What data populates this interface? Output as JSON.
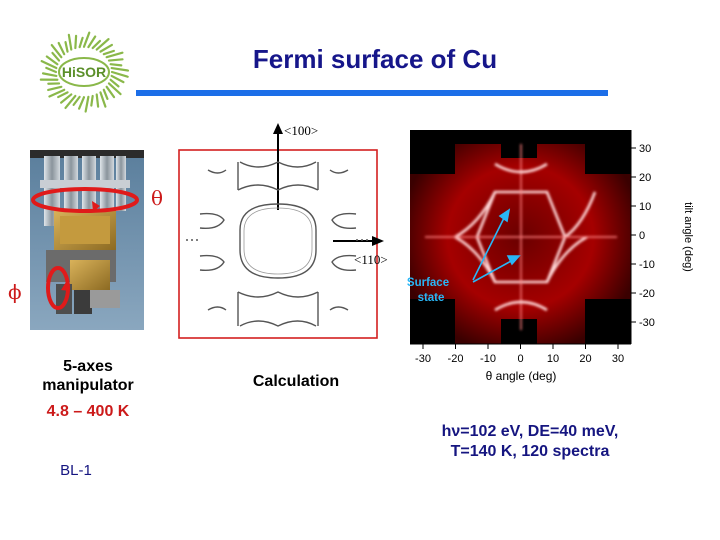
{
  "logo": {
    "text": "HiSOR"
  },
  "title": "Fermi surface of Cu",
  "photo": {
    "theta_symbol": "θ",
    "phi_symbol": "ϕ"
  },
  "calculation": {
    "axis_100": "<100>",
    "axis_110": "<110>",
    "caption": "Calculation"
  },
  "arpes_map": {
    "x_ticks": [
      "-30",
      "-20",
      "-10",
      "0",
      "10",
      "20",
      "30"
    ],
    "y_ticks": [
      "30",
      "20",
      "10",
      "0",
      "-10",
      "-20",
      "-30"
    ],
    "xlabel": "θ angle (deg)",
    "ylabel": "tilt angle (deg)",
    "annotation_line1": "Surface",
    "annotation_line2": "state"
  },
  "manipulator": {
    "line1": "5-axes",
    "line2": "manipulator",
    "temp_range": "4.8 – 400 K"
  },
  "measurement": {
    "line1": "hν=102 eV,  DE=40 meV,",
    "line2": "T=140 K, 120 spectra"
  },
  "beamline": "BL-1",
  "colors": {
    "title": "#16168a",
    "title_rule": "#1c6ee8",
    "red_accent": "#cc1a1a",
    "annotation": "#29b6f6"
  }
}
